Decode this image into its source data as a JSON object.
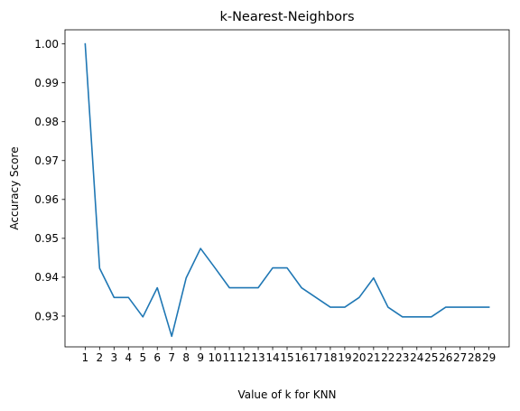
{
  "chart_data": {
    "type": "line",
    "title": "k-Nearest-Neighbors",
    "xlabel": "Value of k for KNN",
    "ylabel": "Accuracy Score",
    "x": [
      1,
      2,
      3,
      4,
      5,
      6,
      7,
      8,
      9,
      10,
      11,
      12,
      13,
      14,
      15,
      16,
      17,
      18,
      19,
      20,
      21,
      22,
      23,
      24,
      25,
      26,
      27,
      28,
      29
    ],
    "series": [
      {
        "values": [
          1.0,
          0.9423,
          0.9348,
          0.9348,
          0.9298,
          0.9373,
          0.9248,
          0.9398,
          0.9474,
          0.9424,
          0.9373,
          0.9373,
          0.9373,
          0.9424,
          0.9424,
          0.9373,
          0.9348,
          0.9323,
          0.9323,
          0.9348,
          0.9398,
          0.9323,
          0.9298,
          0.9298,
          0.9298,
          0.9323,
          0.9323,
          0.9323,
          0.9323
        ],
        "color": "#1f77b4"
      }
    ],
    "xticks": [
      "1",
      "2",
      "3",
      "4",
      "5",
      "6",
      "7",
      "8",
      "9",
      "10",
      "11",
      "12",
      "13",
      "14",
      "15",
      "16",
      "17",
      "18",
      "19",
      "20",
      "21",
      "22",
      "23",
      "24",
      "25",
      "26",
      "27",
      "28",
      "29"
    ],
    "yticks": [
      "0.93",
      "0.94",
      "0.95",
      "0.96",
      "0.97",
      "0.98",
      "0.99",
      "1.00"
    ],
    "ytick_values": [
      0.93,
      0.94,
      0.95,
      0.96,
      0.97,
      0.98,
      0.99,
      1.0
    ],
    "xlim": [
      -0.4,
      30.4
    ],
    "ylim": [
      0.92209,
      1.00363
    ],
    "grid": false,
    "legend": "none"
  }
}
